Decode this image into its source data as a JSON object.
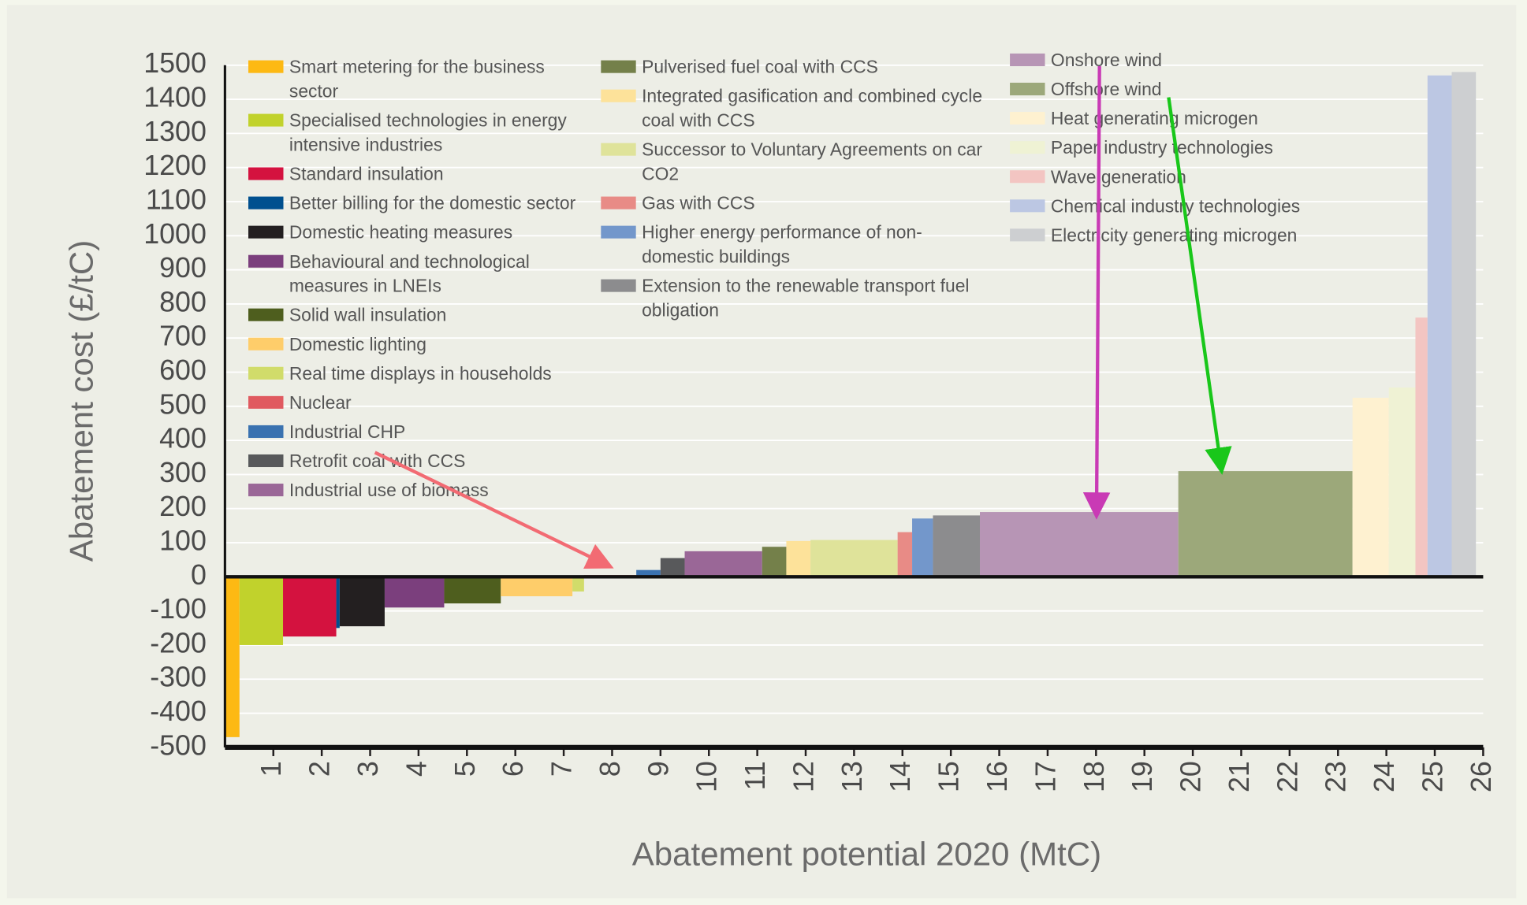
{
  "chart_data": {
    "type": "macc",
    "xlabel": "Abatement potential 2020 (MtC)",
    "ylabel": "Abatement cost (£/tC)",
    "xlim": [
      0,
      26
    ],
    "ylim": [
      -500,
      1500
    ],
    "xticks": [
      1,
      2,
      3,
      4,
      5,
      6,
      7,
      8,
      9,
      10,
      11,
      12,
      13,
      14,
      15,
      16,
      17,
      18,
      19,
      20,
      21,
      22,
      23,
      24,
      25,
      26
    ],
    "yticks": [
      -500,
      -400,
      -300,
      -200,
      -100,
      0,
      100,
      200,
      300,
      400,
      500,
      600,
      700,
      800,
      900,
      1000,
      1100,
      1200,
      1300,
      1400,
      1500
    ],
    "grid": true,
    "series": [
      {
        "name": "Smart metering for the business sector",
        "color": "#fdb913",
        "x": [
          0,
          0.3
        ],
        "value": -470
      },
      {
        "name": "Specialised technologies in energy intensive industries",
        "color": "#c1d22c",
        "x": [
          0.3,
          1.2
        ],
        "value": -200
      },
      {
        "name": "Standard insulation",
        "color": "#d4123f",
        "x": [
          1.2,
          2.3
        ],
        "value": -175
      },
      {
        "name": "Better billing for the domestic sector",
        "color": "#00508f",
        "x": [
          2.3,
          2.37
        ],
        "value": -150
      },
      {
        "name": "Domestic heating measures",
        "color": "#231f20",
        "x": [
          2.37,
          3.3
        ],
        "value": -145
      },
      {
        "name": "Behavioural and technological measures in LNEIs",
        "color": "#7b3f7d",
        "x": [
          3.3,
          4.53
        ],
        "value": -90
      },
      {
        "name": "Solid wall insulation",
        "color": "#4e5e1e",
        "x": [
          4.53,
          5.7
        ],
        "value": -78
      },
      {
        "name": "Domestic lighting",
        "color": "#fecd6a",
        "x": [
          5.7,
          7.18
        ],
        "value": -57
      },
      {
        "name": "Real time displays in households",
        "color": "#d1dc6a",
        "x": [
          7.18,
          7.42
        ],
        "value": -43
      },
      {
        "name": "Nuclear",
        "color": "#e05a60",
        "x": [
          7.42,
          8.5
        ],
        "value": 5
      },
      {
        "name": "Industrial CHP",
        "color": "#3a72b0",
        "x": [
          8.5,
          9.0
        ],
        "value": 20
      },
      {
        "name": "Retrofit coal with CCS",
        "color": "#58595b",
        "x": [
          9.0,
          9.5
        ],
        "value": 55
      },
      {
        "name": "Industrial use of biomass",
        "color": "#9a6797",
        "x": [
          9.5,
          11.1
        ],
        "value": 75
      },
      {
        "name": "Pulverised fuel coal with CCS",
        "color": "#74804a",
        "x": [
          11.1,
          11.6
        ],
        "value": 88
      },
      {
        "name": "Integrated gasification and combined cycle coal with CCS",
        "color": "#fde29a",
        "x": [
          11.6,
          12.1
        ],
        "value": 105
      },
      {
        "name": "Successor to Voluntary Agreements on car CO2",
        "color": "#dfe39a",
        "x": [
          12.1,
          13.9
        ],
        "value": 108
      },
      {
        "name": "Gas with CCS",
        "color": "#e88b86",
        "x": [
          13.9,
          14.2
        ],
        "value": 131
      },
      {
        "name": "Higher energy performance of non-domestic buildings",
        "color": "#7397cb",
        "x": [
          14.2,
          14.63
        ],
        "value": 171
      },
      {
        "name": "Extension to the renewable transport fuel obligation",
        "color": "#8c8c8e",
        "x": [
          14.63,
          15.6
        ],
        "value": 180
      },
      {
        "name": "Onshore wind",
        "color": "#b795b5",
        "x": [
          15.6,
          19.7
        ],
        "value": 190
      },
      {
        "name": "Offshore wind",
        "color": "#9ca87a",
        "x": [
          19.7,
          23.3
        ],
        "value": 310
      },
      {
        "name": "Heat generating microgen",
        "color": "#fef1d0",
        "x": [
          23.3,
          24.05
        ],
        "value": 525
      },
      {
        "name": "Paper industry technologies",
        "color": "#eff2d4",
        "x": [
          24.05,
          24.6
        ],
        "value": 555
      },
      {
        "name": "Wave generation",
        "color": "#f3c5c2",
        "x": [
          24.6,
          24.85
        ],
        "value": 760
      },
      {
        "name": "Chemical industry technologies",
        "color": "#bcc7e3",
        "x": [
          24.85,
          25.35
        ],
        "value": 1470
      },
      {
        "name": "Electricity generating microgen",
        "color": "#cdcfd1",
        "x": [
          25.35,
          25.85
        ],
        "value": 1480
      }
    ]
  }
}
